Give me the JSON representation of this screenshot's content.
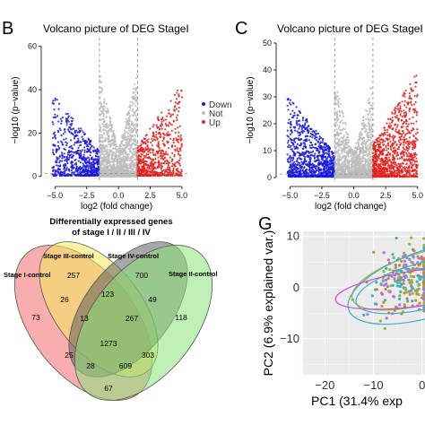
{
  "chart_data": [
    {
      "panel": "B",
      "type": "scatter",
      "title": "Volcano picture of DEG StageI",
      "xlabel": "log2 (fold change)",
      "ylabel": "−log10 (p−value)",
      "xlim": [
        -5.8,
        5.5
      ],
      "ylim": [
        -3,
        64
      ],
      "xticks": [
        -5.0,
        -2.5,
        0.0,
        2.5,
        5.0
      ],
      "xtick_labels": [
        "−5.0",
        "−2.5",
        "0.0",
        "2.5",
        "5.0"
      ],
      "yticks": [
        0,
        20,
        40,
        60
      ],
      "ytick_labels": [
        "0",
        "20",
        "40",
        "60"
      ],
      "thresholds": {
        "x": [
          -1.5,
          1.5
        ],
        "y": 1.3
      },
      "legend": {
        "placement": "right",
        "entries": [
          "Down",
          "Not",
          "Up"
        ]
      },
      "series": [
        {
          "name": "Down",
          "color": "#1a1adf",
          "x_range": [
            -5.2,
            -1.5
          ],
          "approx_points": 700,
          "ymax": 38
        },
        {
          "name": "Not",
          "color": "#bdbdbd",
          "x_range": [
            -1.5,
            1.5
          ],
          "approx_points": 1500,
          "ymax": 48
        },
        {
          "name": "Up",
          "color": "#e8201c",
          "x_range": [
            1.5,
            5.0
          ],
          "approx_points": 700,
          "ymax": 44
        }
      ]
    },
    {
      "panel": "C",
      "type": "scatter",
      "title": "Volcano picture of DEG StageI",
      "xlabel": "log2 (fold change)",
      "ylabel": "−log10 (p−value)",
      "xlim": [
        -5.8,
        5.3
      ],
      "ylim": [
        -2,
        52
      ],
      "xticks": [
        -5.0,
        -2.5,
        0.0,
        2.5,
        5.0
      ],
      "xtick_labels": [
        "−5.0",
        "−2.5",
        "0.0",
        "2.5",
        "5.0"
      ],
      "yticks": [
        0,
        10,
        20,
        30,
        40,
        50
      ],
      "ytick_labels": [
        "0",
        "10",
        "20",
        "30",
        "40",
        "50"
      ],
      "thresholds": {
        "x": [
          -1.5,
          1.5
        ],
        "y": 1.3
      },
      "series": [
        {
          "name": "Down",
          "color": "#1a1adf",
          "x_range": [
            -5.2,
            -1.5
          ],
          "approx_points": 1000,
          "ymax": 30
        },
        {
          "name": "Not",
          "color": "#bdbdbd",
          "x_range": [
            -1.5,
            1.5
          ],
          "approx_points": 1500,
          "ymax": 36
        },
        {
          "name": "Up",
          "color": "#e8201c",
          "x_range": [
            1.5,
            5.0
          ],
          "approx_points": 1000,
          "ymax": 40
        }
      ]
    },
    {
      "panel": "Venn",
      "type": "venn",
      "title_lines": [
        "Differentially expressed genes",
        "of stage I / II / III / IV"
      ],
      "sets": [
        {
          "name": "Stage I-control",
          "color": "#f36b6b"
        },
        {
          "name": "Stage III-control",
          "color": "#f3ea5c"
        },
        {
          "name": "Stage IV-control",
          "color": "#5e5e5e"
        },
        {
          "name": "Stage II-control",
          "color": "#8be37a"
        }
      ],
      "regions": [
        {
          "sets": "I",
          "value": 73
        },
        {
          "sets": "III",
          "value": 257
        },
        {
          "sets": "IV",
          "value": 700
        },
        {
          "sets": "II",
          "value": 118
        },
        {
          "sets": "I+III",
          "value": 26
        },
        {
          "sets": "III+IV",
          "value": 123
        },
        {
          "sets": "IV+II",
          "value": 49
        },
        {
          "sets": "I+III+IV",
          "value": 13
        },
        {
          "sets": "III+IV+II",
          "value": 267
        },
        {
          "sets": "I+III+IV+II",
          "value": 1273
        },
        {
          "sets": "I+IV",
          "value": 25
        },
        {
          "sets": "III+II",
          "value": 303
        },
        {
          "sets": "I+IV+II",
          "value": 28
        },
        {
          "sets": "I+III+II",
          "value": 609
        },
        {
          "sets": "I+II",
          "value": 67
        }
      ]
    },
    {
      "panel": "G",
      "type": "scatter",
      "title": "",
      "xlabel": "PC1 (31.4% exp",
      "ylabel": "PC2 (6.9% explained var.)",
      "xlim": [
        -24.5,
        0.6
      ],
      "ylim": [
        -17,
        11
      ],
      "xticks": [
        -20,
        -10,
        0
      ],
      "xtick_labels": [
        "−20",
        "−10",
        "0"
      ],
      "yticks": [
        10,
        0,
        -10
      ],
      "ytick_labels": [
        "10",
        "0",
        "−10"
      ],
      "grid": true,
      "point_colors": [
        "#3ab0c9",
        "#8fb83a",
        "#c98a2c",
        "#c46bd6"
      ],
      "ellipse_colors": [
        "#3ab0c9",
        "#8fb83a",
        "#d24cd2"
      ]
    }
  ]
}
